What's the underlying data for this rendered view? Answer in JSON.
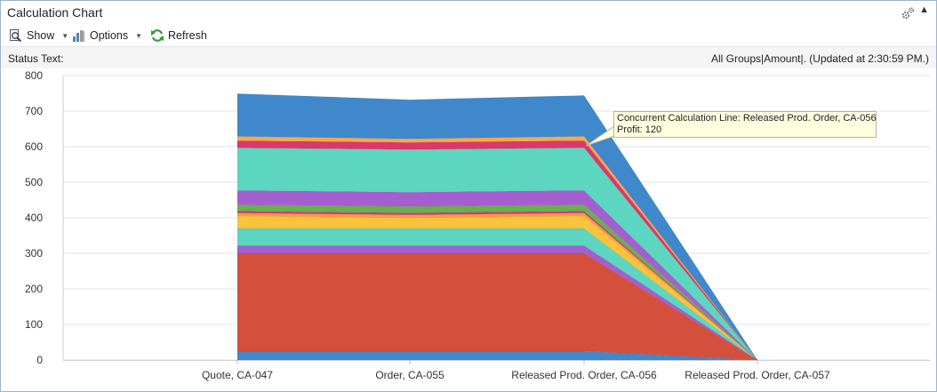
{
  "window": {
    "title": "Calculation Chart"
  },
  "toolbar": {
    "show_label": "Show",
    "options_label": "Options",
    "refresh_label": "Refresh"
  },
  "status": {
    "label": "Status Text:",
    "info": "All Groups|Amount|. (Updated at  2:30:59 PM.)"
  },
  "tooltip": {
    "line1": "Concurrent Calculation Line: Released Prod. Order, CA-056",
    "line2": "Profit: 120"
  },
  "chart_data": {
    "type": "area",
    "stacked": true,
    "categories": [
      "Quote, CA-047",
      "Order, CA-055",
      "Released Prod. Order, CA-056",
      "Released Prod. Order, CA-057"
    ],
    "ylim": [
      0,
      800
    ],
    "yticks": [
      0,
      100,
      200,
      300,
      400,
      500,
      600,
      700,
      800
    ],
    "grid": true,
    "series": [
      {
        "color": "#3f88cc",
        "values": [
          25,
          25,
          25,
          0
        ]
      },
      {
        "color": "#d4503c",
        "values": [
          275,
          275,
          275,
          0
        ]
      },
      {
        "color": "#a35fd0",
        "values": [
          22,
          22,
          22,
          0
        ]
      },
      {
        "color": "#5cd6c0",
        "values": [
          48,
          48,
          48,
          0
        ]
      },
      {
        "color": "#f9c33c",
        "values": [
          35,
          30,
          35,
          0
        ]
      },
      {
        "color": "#ff9a3c",
        "values": [
          8,
          8,
          8,
          0
        ]
      },
      {
        "color": "#c8407a",
        "values": [
          6,
          6,
          6,
          0
        ]
      },
      {
        "color": "#6ab04c",
        "values": [
          18,
          18,
          18,
          0
        ]
      },
      {
        "color": "#a35fd0",
        "values": [
          40,
          40,
          40,
          0
        ]
      },
      {
        "color": "#5cd6c0",
        "values": [
          120,
          120,
          120,
          0
        ]
      },
      {
        "color": "#d9386a",
        "values": [
          20,
          20,
          20,
          0
        ]
      },
      {
        "color": "#ffa64d",
        "values": [
          12,
          10,
          12,
          0
        ]
      },
      {
        "color": "#3f88cc",
        "values": [
          120,
          110,
          115,
          0
        ]
      }
    ]
  }
}
